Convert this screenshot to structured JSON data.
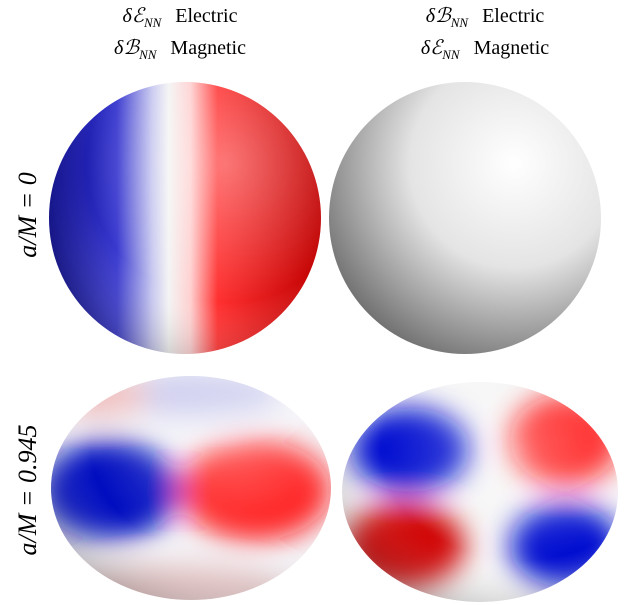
{
  "columns": [
    {
      "lines": [
        {
          "symbol": "δℰ",
          "subscript": "NN",
          "word": "Electric"
        },
        {
          "symbol": "δℬ",
          "subscript": "NN",
          "word": "Magnetic"
        }
      ]
    },
    {
      "lines": [
        {
          "symbol": "δℬ",
          "subscript": "NN",
          "word": "Electric"
        },
        {
          "symbol": "δℰ",
          "subscript": "NN",
          "word": "Magnetic"
        }
      ]
    }
  ],
  "rows": [
    {
      "label": "a/M = 0"
    },
    {
      "label": "a/M = 0.945"
    }
  ]
}
